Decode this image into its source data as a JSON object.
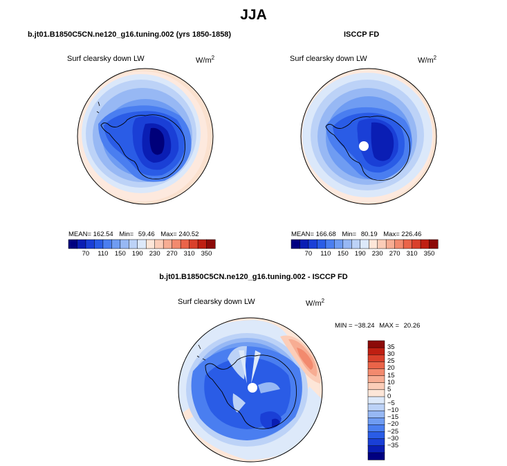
{
  "figure": {
    "title": "JJA"
  },
  "panels": [
    {
      "title": "b.jt01.B1850C5CN.ne120_g16.tuning.002 (yrs 1850-1858)",
      "variable": "Surf clearsky down LW",
      "units_base": "W/m",
      "units_exp": "2",
      "mean_label": "MEAN=",
      "mean_value": "162.54",
      "min_label": "Min=",
      "min_value": "59.46",
      "max_label": "Max=",
      "max_value": "240.52"
    },
    {
      "title": "ISCCP FD",
      "variable": "Surf clearsky down LW",
      "units_base": "W/m",
      "units_exp": "2",
      "mean_label": "MEAN=",
      "mean_value": "166.68",
      "min_label": "Min=",
      "min_value": "80.19",
      "max_label": "Max=",
      "max_value": "226.46"
    },
    {
      "title": "b.jt01.B1850C5CN.ne120_g16.tuning.002 - ISCCP FD",
      "variable": "Surf clearsky down LW",
      "units_base": "W/m",
      "units_exp": "2",
      "min_label": "MIN =",
      "min_value": "−38.24",
      "max_label": "MAX =",
      "max_value": "20.26"
    }
  ],
  "colorbar_abs": {
    "colors": [
      "#000080",
      "#0a1eb4",
      "#1a3fd6",
      "#2a5ce6",
      "#4a7ef0",
      "#6f9cf2",
      "#97b8f4",
      "#bcd2f7",
      "#dde9fa",
      "#fde6d8",
      "#fbcdb8",
      "#f7ad93",
      "#f28a6e",
      "#ea6449",
      "#d9402b",
      "#bf1f12",
      "#8c0a08"
    ],
    "tick_labels": [
      "70",
      "110",
      "150",
      "190",
      "230",
      "270",
      "310",
      "350"
    ]
  },
  "colorbar_diff": {
    "colors": [
      "#000080",
      "#0a1eb4",
      "#1a3fd6",
      "#2a5ce6",
      "#4a7ef0",
      "#6f9cf2",
      "#97b8f4",
      "#bcd2f7",
      "#dde9fa",
      "#fde6d8",
      "#fbcdb8",
      "#f7ad93",
      "#f28a6e",
      "#ea6449",
      "#d9402b",
      "#bf1f12",
      "#8c0a08"
    ],
    "tick_labels": [
      "35",
      "30",
      "25",
      "20",
      "15",
      "10",
      "5",
      "0",
      "−5",
      "−10",
      "−15",
      "−20",
      "−25",
      "−30",
      "−35"
    ]
  },
  "colors": {
    "ocean_far": "#fbe3d4",
    "land_outline": "#000000"
  }
}
